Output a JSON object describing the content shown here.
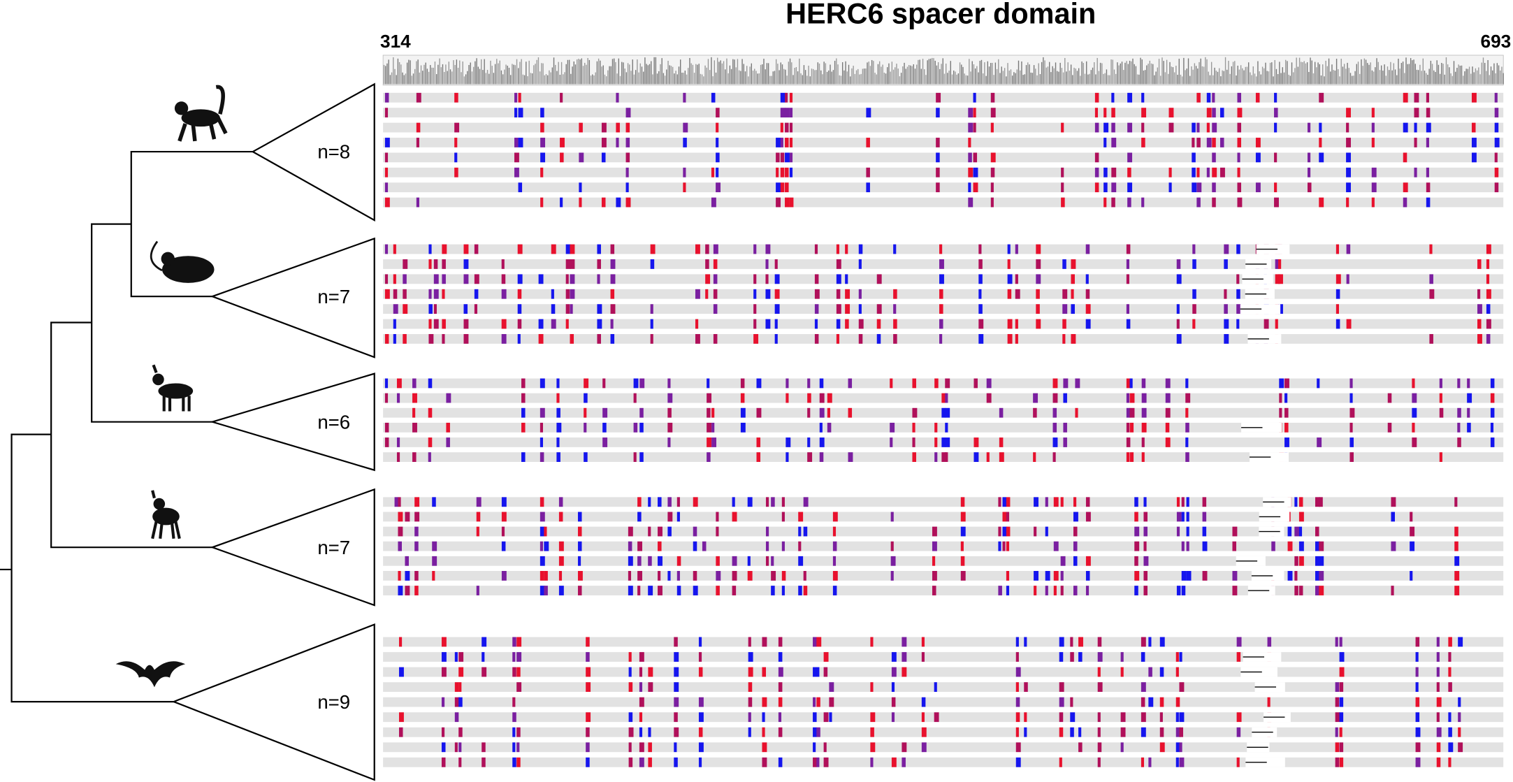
{
  "title": "HERC6 spacer domain",
  "start_label": "314",
  "end_label": "693",
  "groups": [
    {
      "label": "n=8"
    },
    {
      "label": "n=7"
    },
    {
      "label": "n=6"
    },
    {
      "label": "n=7"
    },
    {
      "label": "n=9"
    }
  ]
}
